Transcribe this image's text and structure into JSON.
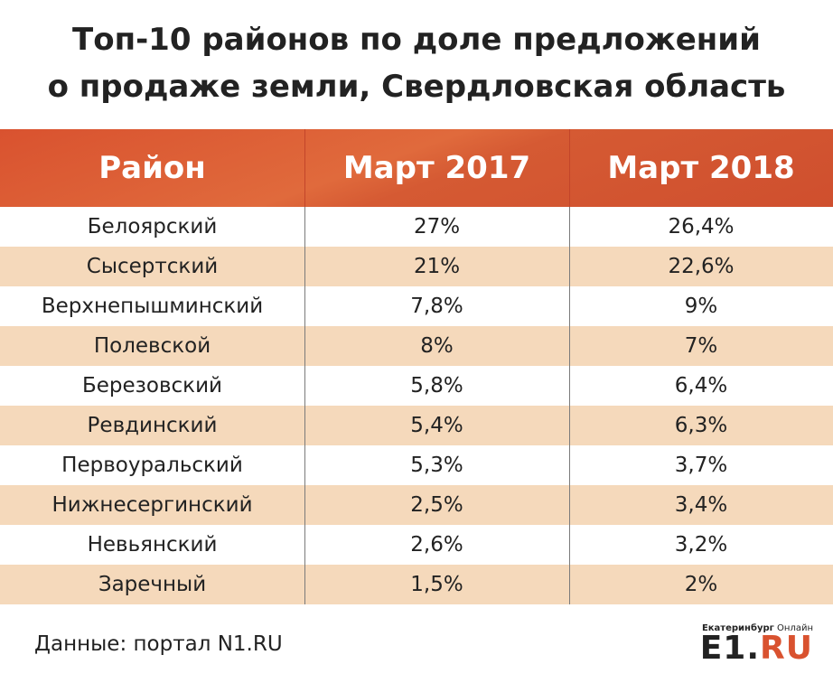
{
  "title": {
    "line1": "Топ-10 районов по доле предложений",
    "line2": "о продаже земли, Свердловская область"
  },
  "table": {
    "headers": [
      "Район",
      "Март 2017",
      "Март 2018"
    ],
    "rows": [
      {
        "district": "Белоярский",
        "mar2017": "27%",
        "mar2018": "26,4%"
      },
      {
        "district": "Сысертский",
        "mar2017": "21%",
        "mar2018": "22,6%"
      },
      {
        "district": "Верхнепышминский",
        "mar2017": "7,8%",
        "mar2018": "9%"
      },
      {
        "district": "Полевской",
        "mar2017": "8%",
        "mar2018": "7%"
      },
      {
        "district": "Березовский",
        "mar2017": "5,8%",
        "mar2018": "6,4%"
      },
      {
        "district": "Ревдинский",
        "mar2017": "5,4%",
        "mar2018": "6,3%"
      },
      {
        "district": "Первоуральский",
        "mar2017": "5,3%",
        "mar2018": "3,7%"
      },
      {
        "district": "Нижнесергинский",
        "mar2017": "2,5%",
        "mar2018": "3,4%"
      },
      {
        "district": "Невьянский",
        "mar2017": "2,6%",
        "mar2018": "3,2%"
      },
      {
        "district": "Заречный",
        "mar2017": "1,5%",
        "mar2018": "2%"
      }
    ]
  },
  "source": "Данные: портал N1.RU",
  "logo": {
    "top_bold": "Екатеринбург",
    "top_regular": "Онлайн",
    "main_e1": "E1.",
    "main_ru": "RU"
  },
  "colors": {
    "header_bg": "#d9522f",
    "stripe_bg": "#f5d9bb",
    "accent": "#d9522f"
  }
}
